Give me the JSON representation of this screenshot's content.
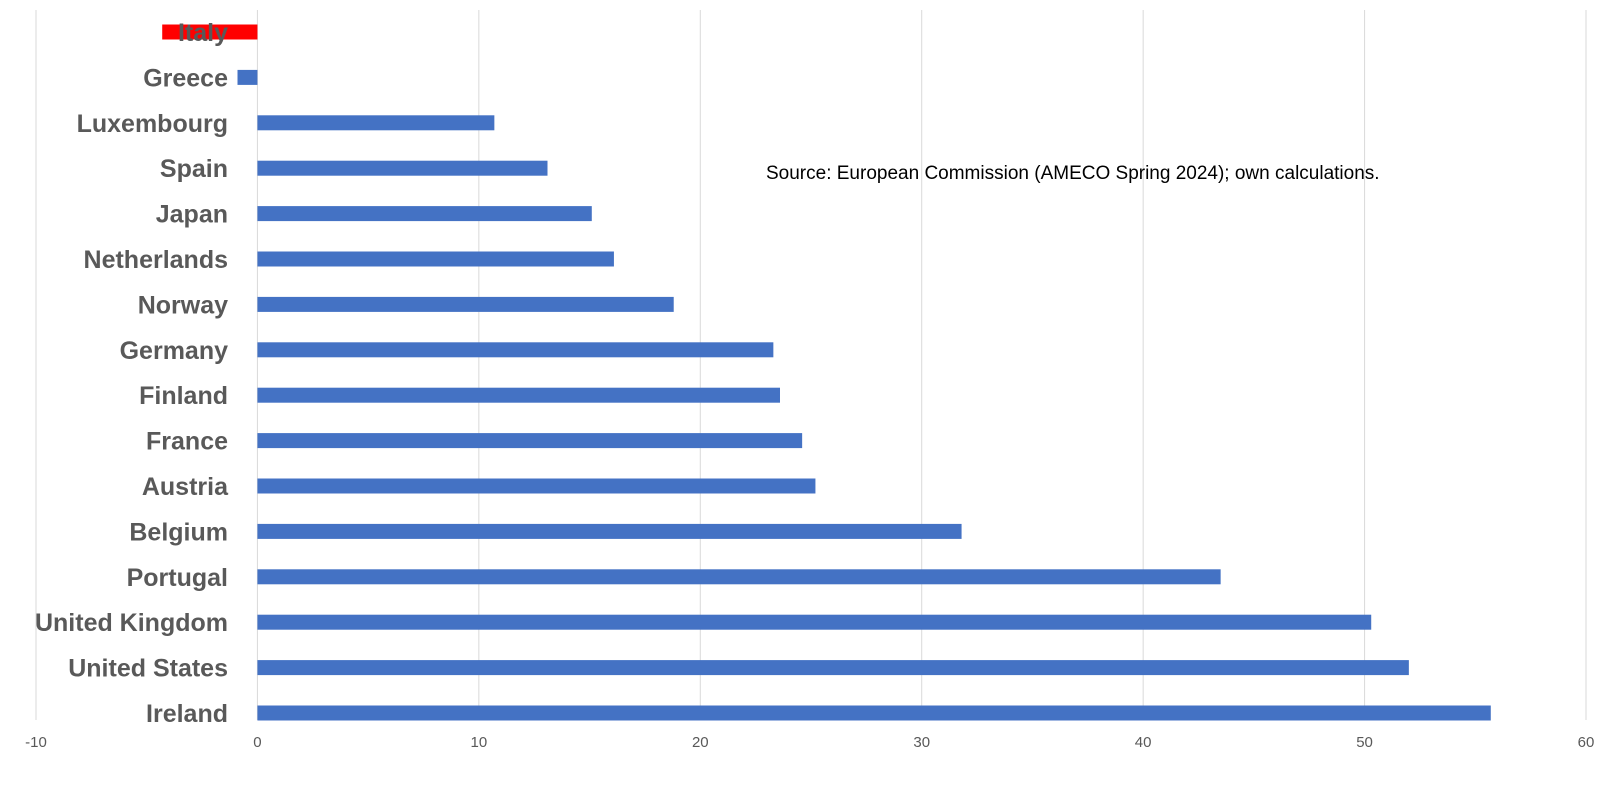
{
  "chart_data": {
    "type": "bar",
    "orientation": "horizontal",
    "categories": [
      "Italy",
      "Greece",
      "Luxembourg",
      "Spain",
      "Japan",
      "Netherlands",
      "Norway",
      "Germany",
      "Finland",
      "France",
      "Austria",
      "Belgium",
      "Portugal",
      "United Kingdom",
      "United States",
      "Ireland"
    ],
    "values": [
      -4.3,
      -0.9,
      10.7,
      13.1,
      15.1,
      16.1,
      18.8,
      23.3,
      23.6,
      24.6,
      25.2,
      31.8,
      43.5,
      50.3,
      52.0,
      55.7
    ],
    "highlight": "Italy",
    "colors": {
      "bar": "#4472c4",
      "highlight": "#ff0000",
      "grid": "#d9d9d9",
      "label": "#595959"
    },
    "xlim": [
      -10,
      60
    ],
    "xticks": [
      "-10",
      "0",
      "10",
      "20",
      "30",
      "40",
      "50",
      "60"
    ],
    "grid": "vertical",
    "annotation": "Source: European Commission (AMECO Spring 2024); own calculations."
  }
}
